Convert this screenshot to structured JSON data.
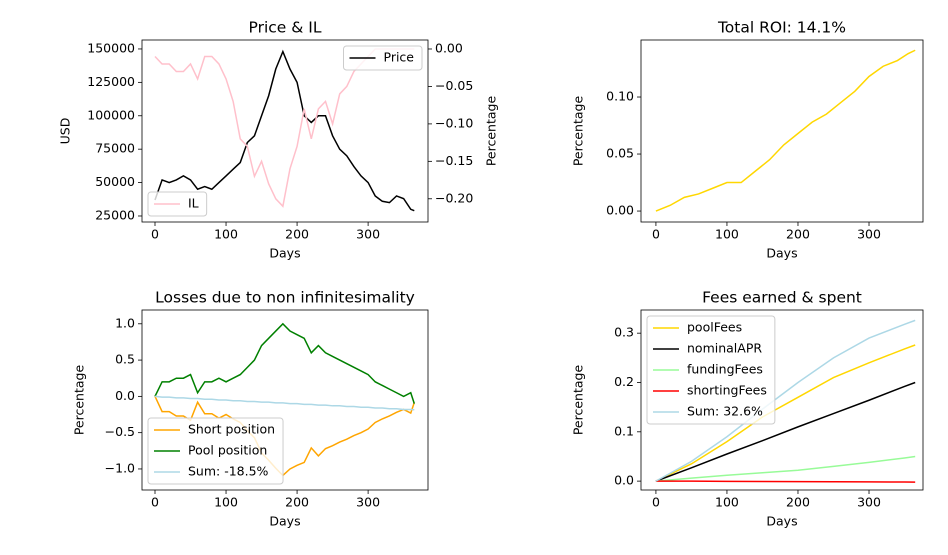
{
  "chart_data": [
    {
      "type": "line",
      "title": "Price & IL",
      "xlabel": "Days",
      "ylabel": "USD",
      "y2label": "Percentage",
      "xlim": [
        -18.3,
        384.3
      ],
      "xticks": [
        0,
        100,
        200,
        300
      ],
      "ylim": [
        20500,
        156700
      ],
      "yticks": [
        25000,
        50000,
        75000,
        100000,
        125000,
        150000
      ],
      "y2lim": [
        -0.231,
        0.012
      ],
      "y2ticks": [
        {
          "value": -0.2,
          "label": "−0.20"
        },
        {
          "value": -0.15,
          "label": "−0.15"
        },
        {
          "value": -0.1,
          "label": "−0.10"
        },
        {
          "value": -0.05,
          "label": "−0.05"
        },
        {
          "value": 0,
          "label": "0.00"
        }
      ],
      "x": [
        0,
        10,
        20,
        30,
        40,
        50,
        60,
        70,
        80,
        90,
        100,
        110,
        120,
        130,
        140,
        150,
        160,
        170,
        180,
        190,
        200,
        210,
        220,
        230,
        240,
        250,
        260,
        270,
        280,
        290,
        300,
        310,
        320,
        330,
        340,
        350,
        360,
        365
      ],
      "series": [
        {
          "name": "Price",
          "color": "#000000",
          "legend": "upper right",
          "values": [
            37000,
            52000,
            50000,
            52000,
            55000,
            52000,
            45000,
            47000,
            45000,
            50000,
            55000,
            60000,
            65000,
            80000,
            85000,
            100000,
            115000,
            135000,
            148000,
            135000,
            125000,
            100000,
            95000,
            100000,
            100000,
            85000,
            75000,
            70000,
            62000,
            55000,
            50000,
            40000,
            36000,
            35000,
            40000,
            38000,
            30000,
            29000
          ]
        },
        {
          "name": "IL",
          "color": "#ffc0cb",
          "axis": "y2",
          "legend": "lower left",
          "values": [
            -0.01,
            -0.02,
            -0.02,
            -0.03,
            -0.03,
            -0.02,
            -0.04,
            -0.01,
            -0.01,
            -0.02,
            -0.04,
            -0.07,
            -0.12,
            -0.13,
            -0.17,
            -0.15,
            -0.18,
            -0.2,
            -0.21,
            -0.16,
            -0.13,
            -0.08,
            -0.12,
            -0.08,
            -0.07,
            -0.1,
            -0.06,
            -0.05,
            -0.03,
            -0.02,
            -0.01,
            0,
            0,
            0,
            0,
            0,
            0,
            0
          ]
        }
      ]
    },
    {
      "type": "line",
      "title": "Total ROI: 14.1%",
      "xlabel": "Days",
      "ylabel": "Percentage",
      "xlim": [
        -21,
        376
      ],
      "xticks": [
        0,
        100,
        200,
        300
      ],
      "ylim": [
        -0.0096,
        0.15
      ],
      "yticks": [
        {
          "value": 0,
          "label": "0.00"
        },
        {
          "value": 0.05,
          "label": "0.05"
        },
        {
          "value": 0.1,
          "label": "0.10"
        }
      ],
      "x": [
        0,
        20,
        40,
        60,
        80,
        100,
        120,
        140,
        160,
        180,
        200,
        220,
        240,
        260,
        280,
        300,
        320,
        340,
        355,
        365
      ],
      "series": [
        {
          "color": "#ffd700",
          "values": [
            0,
            0.005,
            0.012,
            0.015,
            0.02,
            0.025,
            0.025,
            0.035,
            0.045,
            0.058,
            0.068,
            0.078,
            0.085,
            0.095,
            0.105,
            0.118,
            0.127,
            0.132,
            0.138,
            0.141
          ]
        }
      ]
    },
    {
      "type": "line",
      "title": "Losses due to non infinitesimality",
      "xlabel": "Days",
      "ylabel": "Percentage",
      "legend": "lower left",
      "xlim": [
        -18.3,
        384.3
      ],
      "xticks": [
        0,
        100,
        200,
        300
      ],
      "ylim": [
        -1.29,
        1.19
      ],
      "yticks": [
        {
          "value": -1,
          "label": "−1.0"
        },
        {
          "value": -0.5,
          "label": "−0.5"
        },
        {
          "value": 0,
          "label": "0.0"
        },
        0.5,
        {
          "value": 1,
          "label": "1.0"
        }
      ],
      "x": [
        0,
        10,
        20,
        30,
        40,
        50,
        60,
        70,
        80,
        90,
        100,
        110,
        120,
        130,
        140,
        150,
        160,
        170,
        180,
        190,
        200,
        210,
        220,
        230,
        240,
        250,
        260,
        270,
        280,
        290,
        300,
        310,
        320,
        330,
        340,
        350,
        360,
        365
      ],
      "series": [
        {
          "name": "Short position",
          "color": "#ffa500",
          "values": [
            0,
            -0.21,
            -0.21,
            -0.27,
            -0.27,
            -0.33,
            -0.08,
            -0.24,
            -0.24,
            -0.3,
            -0.25,
            -0.31,
            -0.36,
            -0.47,
            -0.57,
            -0.78,
            -0.88,
            -0.99,
            -1.09,
            -1.0,
            -0.95,
            -0.91,
            -0.71,
            -0.82,
            -0.72,
            -0.68,
            -0.63,
            -0.59,
            -0.54,
            -0.5,
            -0.45,
            -0.36,
            -0.31,
            -0.27,
            -0.22,
            -0.18,
            -0.23,
            -0.085
          ]
        },
        {
          "name": "Pool position",
          "color": "#008000",
          "values": [
            0,
            0.2,
            0.2,
            0.25,
            0.25,
            0.3,
            0.05,
            0.2,
            0.2,
            0.25,
            0.2,
            0.25,
            0.3,
            0.4,
            0.5,
            0.7,
            0.8,
            0.9,
            1.0,
            0.9,
            0.85,
            0.8,
            0.6,
            0.7,
            0.6,
            0.55,
            0.5,
            0.45,
            0.4,
            0.35,
            0.3,
            0.2,
            0.15,
            0.1,
            0.05,
            0,
            0.05,
            -0.1
          ]
        },
        {
          "name": "Sum: -18.5%",
          "color": "#add8e6",
          "values": [
            0,
            -0.01,
            -0.01,
            -0.02,
            -0.02,
            -0.03,
            -0.03,
            -0.04,
            -0.04,
            -0.05,
            -0.05,
            -0.06,
            -0.06,
            -0.07,
            -0.07,
            -0.08,
            -0.08,
            -0.09,
            -0.09,
            -0.1,
            -0.1,
            -0.11,
            -0.11,
            -0.12,
            -0.12,
            -0.13,
            -0.13,
            -0.14,
            -0.14,
            -0.15,
            -0.15,
            -0.16,
            -0.16,
            -0.17,
            -0.17,
            -0.18,
            -0.18,
            -0.185
          ]
        }
      ]
    },
    {
      "type": "line",
      "title": "Fees earned & spent",
      "xlabel": "Days",
      "ylabel": "Percentage",
      "legend": "upper left",
      "xlim": [
        -21,
        376
      ],
      "xticks": [
        0,
        100,
        200,
        300
      ],
      "ylim": [
        -0.018,
        0.347
      ],
      "yticks": [
        {
          "value": 0,
          "label": "0.0"
        },
        0.1,
        0.2,
        0.3
      ],
      "x": [
        0,
        50,
        100,
        150,
        200,
        250,
        300,
        350,
        365
      ],
      "series": [
        {
          "name": "poolFees",
          "color": "#ffd700",
          "values": [
            0,
            0.035,
            0.08,
            0.13,
            0.17,
            0.21,
            0.24,
            0.268,
            0.276
          ]
        },
        {
          "name": "nominalAPR",
          "color": "#000000",
          "values": [
            0,
            0.027,
            0.055,
            0.082,
            0.11,
            0.137,
            0.164,
            0.192,
            0.2
          ]
        },
        {
          "name": "fundingFees",
          "color": "#98fb98",
          "values": [
            0,
            0.006,
            0.012,
            0.017,
            0.022,
            0.03,
            0.038,
            0.047,
            0.05
          ]
        },
        {
          "name": "shortingFees",
          "color": "#ff0000",
          "values": [
            0,
            0,
            -0.0005,
            -0.0007,
            -0.001,
            -0.0012,
            -0.0015,
            -0.0018,
            -0.002
          ]
        },
        {
          "name": "Sum: 32.6%",
          "color": "#add8e6",
          "values": [
            0,
            0.04,
            0.09,
            0.146,
            0.2,
            0.25,
            0.29,
            0.318,
            0.326
          ]
        }
      ]
    }
  ]
}
